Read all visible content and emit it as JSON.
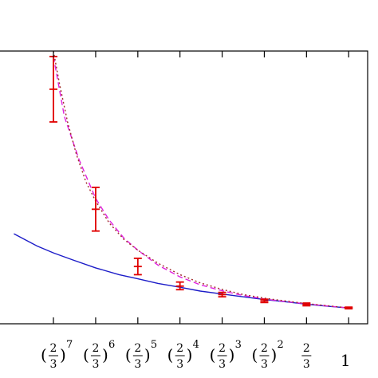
{
  "chart_data": {
    "type": "line",
    "x_scale": "log",
    "xlim": [
      0.035,
      1.2
    ],
    "ylim": [
      0,
      1
    ],
    "grid": false,
    "legend": "none",
    "x_ticks": [
      {
        "label": "(2/3)^7",
        "num": "2",
        "den": "3",
        "exp": "7",
        "value": 0.0585
      },
      {
        "label": "(2/3)^6",
        "num": "2",
        "den": "3",
        "exp": "6",
        "value": 0.0878
      },
      {
        "label": "(2/3)^5",
        "num": "2",
        "den": "3",
        "exp": "5",
        "value": 0.1317
      },
      {
        "label": "(2/3)^4",
        "num": "2",
        "den": "3",
        "exp": "4",
        "value": 0.1975
      },
      {
        "label": "(2/3)^3",
        "num": "2",
        "den": "3",
        "exp": "3",
        "value": 0.2963
      },
      {
        "label": "(2/3)^2",
        "num": "2",
        "den": "3",
        "exp": "2",
        "value": 0.4444
      },
      {
        "label": "2/3",
        "num": "2",
        "den": "3",
        "exp": "",
        "value": 0.6667
      },
      {
        "label": "1",
        "num": "",
        "den": "",
        "exp": "",
        "value": 1.0
      }
    ],
    "series": [
      {
        "style": "solid",
        "color": "#1c1cc8",
        "x": [
          0.04,
          0.05,
          0.0585,
          0.07,
          0.0878,
          0.11,
          0.1317,
          0.16,
          0.1975,
          0.24,
          0.2963,
          0.36,
          0.4444,
          0.55,
          0.6667,
          0.82,
          1.0
        ],
        "y": [
          0.33,
          0.285,
          0.26,
          0.235,
          0.205,
          0.18,
          0.165,
          0.148,
          0.134,
          0.12,
          0.109,
          0.099,
          0.089,
          0.08,
          0.072,
          0.064,
          0.058
        ]
      },
      {
        "style": "dashed",
        "color": "#e020e0",
        "x": [
          0.0585,
          0.065,
          0.075,
          0.0878,
          0.1,
          0.115,
          0.1317,
          0.16,
          0.1975,
          0.24,
          0.2963,
          0.36,
          0.4444,
          0.55,
          0.6667,
          0.82,
          1.0
        ],
        "y": [
          0.98,
          0.76,
          0.6,
          0.46,
          0.38,
          0.315,
          0.27,
          0.215,
          0.172,
          0.143,
          0.121,
          0.104,
          0.091,
          0.081,
          0.073,
          0.065,
          0.058
        ]
      },
      {
        "style": "dotted",
        "color": "#a02a2a",
        "x": [
          0.0585,
          0.062,
          0.067,
          0.073,
          0.08,
          0.0878,
          0.1,
          0.115,
          0.1317,
          0.16,
          0.1975,
          0.24,
          0.2963,
          0.36,
          0.4444,
          0.55,
          0.6667,
          0.82,
          1.0
        ],
        "y": [
          1.0,
          0.88,
          0.74,
          0.62,
          0.52,
          0.45,
          0.37,
          0.31,
          0.27,
          0.222,
          0.18,
          0.15,
          0.126,
          0.108,
          0.094,
          0.083,
          0.074,
          0.066,
          0.058
        ]
      }
    ],
    "error_bars": {
      "color": "#e00000",
      "points": [
        {
          "x": 0.0585,
          "y": 0.86,
          "low": 0.74,
          "high": 0.98
        },
        {
          "x": 0.0878,
          "y": 0.42,
          "low": 0.34,
          "high": 0.5
        },
        {
          "x": 0.1317,
          "y": 0.21,
          "low": 0.18,
          "high": 0.24
        },
        {
          "x": 0.1975,
          "y": 0.138,
          "low": 0.125,
          "high": 0.153
        },
        {
          "x": 0.2963,
          "y": 0.107,
          "low": 0.099,
          "high": 0.115
        },
        {
          "x": 0.4444,
          "y": 0.084,
          "low": 0.078,
          "high": 0.09
        },
        {
          "x": 0.6667,
          "y": 0.071,
          "low": 0.066,
          "high": 0.076
        },
        {
          "x": 1.0,
          "y": 0.058,
          "low": 0.055,
          "high": 0.061
        }
      ]
    }
  }
}
